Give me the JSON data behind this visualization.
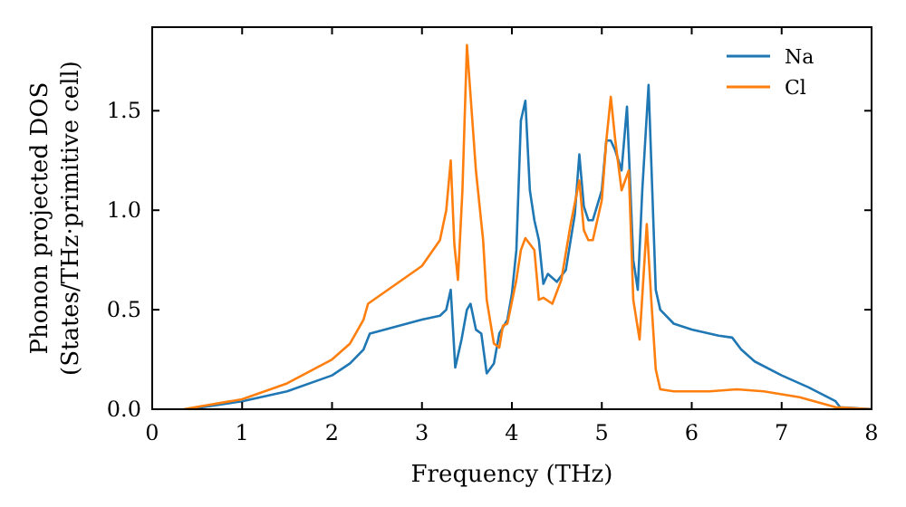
{
  "chart_data": {
    "type": "line",
    "xlabel": "Frequency (THz)",
    "ylabel": "Phonon projected DOS\n(States/THz·primitive cell)",
    "xlim": [
      0,
      8
    ],
    "ylim": [
      0,
      1.92
    ],
    "xticks": [
      0,
      1,
      2,
      3,
      4,
      5,
      6,
      7,
      8
    ],
    "yticks": [
      {
        "value": 0,
        "label": "0.0"
      },
      {
        "value": 0.5,
        "label": "0.5"
      },
      {
        "value": 1,
        "label": "1.0"
      },
      {
        "value": 1.5,
        "label": "1.5"
      }
    ],
    "legend": "top right",
    "grid": false,
    "series": [
      {
        "name": "Na",
        "color": "#1f77b4",
        "x": [
          0.4,
          1,
          1.5,
          2,
          2.2,
          2.35,
          2.42,
          3,
          3.2,
          3.27,
          3.32,
          3.37,
          3.44,
          3.5,
          3.54,
          3.6,
          3.66,
          3.72,
          3.8,
          3.86,
          3.95,
          4.0,
          4.05,
          4.1,
          4.15,
          4.2,
          4.25,
          4.3,
          4.35,
          4.4,
          4.5,
          4.6,
          4.7,
          4.75,
          4.8,
          4.85,
          4.9,
          5.0,
          5.05,
          5.1,
          5.15,
          5.22,
          5.28,
          5.35,
          5.4,
          5.45,
          5.52,
          5.6,
          5.65,
          5.8,
          6,
          6.3,
          6.45,
          6.55,
          6.7,
          7,
          7.3,
          7.6,
          7.65,
          8
        ],
        "values": [
          0,
          0.04,
          0.09,
          0.17,
          0.23,
          0.3,
          0.38,
          0.45,
          0.47,
          0.5,
          0.6,
          0.21,
          0.35,
          0.5,
          0.53,
          0.4,
          0.38,
          0.18,
          0.23,
          0.38,
          0.45,
          0.58,
          0.8,
          1.45,
          1.55,
          1.1,
          0.95,
          0.85,
          0.63,
          0.68,
          0.64,
          0.7,
          0.98,
          1.28,
          1.02,
          0.95,
          0.95,
          1.1,
          1.35,
          1.35,
          1.3,
          1.2,
          1.52,
          0.75,
          0.6,
          1.1,
          1.63,
          0.6,
          0.5,
          0.43,
          0.4,
          0.37,
          0.36,
          0.3,
          0.24,
          0.17,
          0.11,
          0.04,
          0.01,
          0
        ]
      },
      {
        "name": "Cl",
        "color": "#ff7f0e",
        "x": [
          0.35,
          1,
          1.5,
          2,
          2.2,
          2.35,
          2.4,
          3,
          3.2,
          3.27,
          3.32,
          3.36,
          3.4,
          3.45,
          3.5,
          3.6,
          3.68,
          3.72,
          3.8,
          3.86,
          3.9,
          3.95,
          4.05,
          4.1,
          4.15,
          4.25,
          4.3,
          4.35,
          4.45,
          4.55,
          4.65,
          4.75,
          4.8,
          4.85,
          4.9,
          5.0,
          5.05,
          5.1,
          5.15,
          5.22,
          5.3,
          5.35,
          5.42,
          5.5,
          5.55,
          5.6,
          5.65,
          5.8,
          6.2,
          6.5,
          6.8,
          7.2,
          7.6,
          8
        ],
        "values": [
          0,
          0.05,
          0.13,
          0.25,
          0.33,
          0.45,
          0.53,
          0.72,
          0.85,
          1.0,
          1.25,
          0.83,
          0.65,
          1.1,
          1.83,
          1.2,
          0.85,
          0.55,
          0.33,
          0.31,
          0.42,
          0.43,
          0.65,
          0.8,
          0.86,
          0.8,
          0.55,
          0.56,
          0.53,
          0.65,
          0.92,
          1.15,
          0.9,
          0.85,
          0.85,
          1.05,
          1.35,
          1.57,
          1.35,
          1.1,
          1.2,
          0.55,
          0.35,
          0.93,
          0.55,
          0.2,
          0.1,
          0.09,
          0.09,
          0.1,
          0.09,
          0.06,
          0.01,
          0
        ]
      }
    ]
  }
}
